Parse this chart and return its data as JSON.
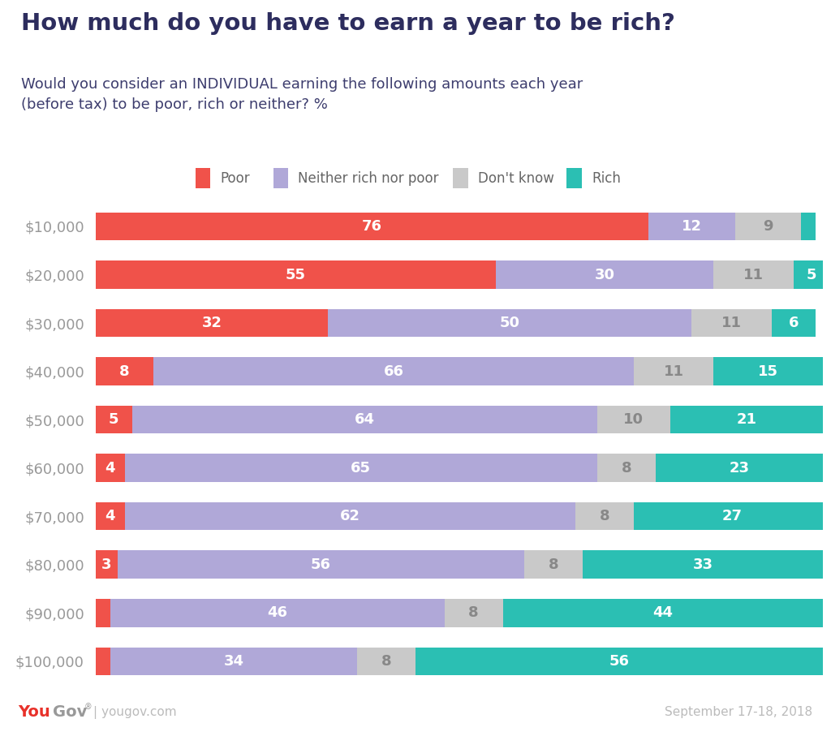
{
  "title": "How much do you have to earn a year to be rich?",
  "subtitle": "Would you consider an INDIVIDUAL earning the following amounts each year\n(before tax) to be poor, rich or neither? %",
  "categories": [
    "$10,000",
    "$20,000",
    "$30,000",
    "$40,000",
    "$50,000",
    "$60,000",
    "$70,000",
    "$80,000",
    "$90,000",
    "$100,000"
  ],
  "poor": [
    76,
    55,
    32,
    8,
    5,
    4,
    4,
    3,
    2,
    2
  ],
  "neither": [
    12,
    30,
    50,
    66,
    64,
    65,
    62,
    56,
    46,
    34
  ],
  "dontknow": [
    9,
    11,
    11,
    11,
    10,
    8,
    8,
    8,
    8,
    8
  ],
  "rich": [
    2,
    5,
    6,
    15,
    21,
    23,
    27,
    33,
    44,
    56
  ],
  "colors": {
    "poor": "#f0524a",
    "neither": "#b0a8d8",
    "dontknow": "#c9c9c9",
    "rich": "#2bbfb3"
  },
  "header_bg": "#e6e6f0",
  "title_color": "#2d2d5e",
  "subtitle_color": "#3d3d6e",
  "label_color": "#999999",
  "bar_text_color": "#ffffff",
  "footer_yougov_red": "#e8312a",
  "footer_text_color": "#bbbbbb",
  "footer_date": "September 17-18, 2018",
  "footer_url": "yougov.com",
  "legend_items": [
    "Poor",
    "Neither rich nor poor",
    "Don't know",
    "Rich"
  ],
  "legend_color_keys": [
    "poor",
    "neither",
    "dontknow",
    "rich"
  ]
}
